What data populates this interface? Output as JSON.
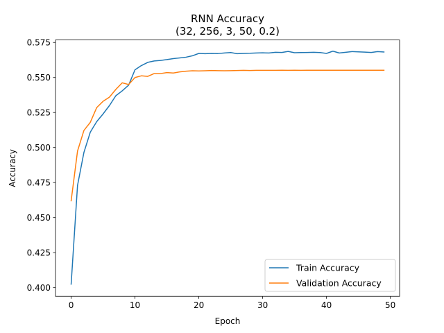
{
  "chart_data": {
    "type": "line",
    "title": "RNN Accuracy",
    "subtitle": "(32, 256, 3, 50, 0.2)",
    "xlabel": "Epoch",
    "ylabel": "Accuracy",
    "xlim": [
      -2.45,
      51.45
    ],
    "ylim": [
      0.3938,
      0.5768
    ],
    "xticks": [
      0,
      10,
      20,
      30,
      40,
      50
    ],
    "yticks": [
      0.4,
      0.425,
      0.45,
      0.475,
      0.5,
      0.525,
      0.55,
      0.575
    ],
    "ytick_labels": [
      "0.400",
      "0.425",
      "0.450",
      "0.475",
      "0.500",
      "0.525",
      "0.550",
      "0.575"
    ],
    "grid": false,
    "legend_position": "lower-right",
    "x": [
      0,
      1,
      2,
      3,
      4,
      5,
      6,
      7,
      8,
      9,
      10,
      11,
      12,
      13,
      14,
      15,
      16,
      17,
      18,
      19,
      20,
      21,
      22,
      23,
      24,
      25,
      26,
      27,
      28,
      29,
      30,
      31,
      32,
      33,
      34,
      35,
      36,
      37,
      38,
      39,
      40,
      41,
      42,
      43,
      44,
      45,
      46,
      47,
      48,
      49
    ],
    "series": [
      {
        "name": "Train Accuracy",
        "color": "#1f77b4",
        "values": [
          0.4025,
          0.473,
          0.4965,
          0.511,
          0.5185,
          0.524,
          0.53,
          0.537,
          0.5405,
          0.5445,
          0.5555,
          0.5585,
          0.5608,
          0.5618,
          0.5622,
          0.5628,
          0.5635,
          0.564,
          0.5645,
          0.5655,
          0.5672,
          0.567,
          0.5672,
          0.5671,
          0.5675,
          0.5678,
          0.567,
          0.5672,
          0.5673,
          0.5675,
          0.5676,
          0.5675,
          0.568,
          0.5679,
          0.5686,
          0.5677,
          0.5678,
          0.5679,
          0.568,
          0.5678,
          0.5672,
          0.5688,
          0.5675,
          0.568,
          0.5685,
          0.5683,
          0.5681,
          0.5679,
          0.5685,
          0.5682
        ]
      },
      {
        "name": "Validation Accuracy",
        "color": "#ff7f0e",
        "values": [
          0.462,
          0.4975,
          0.5122,
          0.518,
          0.5285,
          0.533,
          0.536,
          0.5415,
          0.5462,
          0.545,
          0.55,
          0.5512,
          0.5508,
          0.5528,
          0.5528,
          0.5535,
          0.5532,
          0.554,
          0.5545,
          0.5548,
          0.5547,
          0.5548,
          0.555,
          0.5549,
          0.5548,
          0.5549,
          0.555,
          0.5551,
          0.555,
          0.5551,
          0.5551,
          0.5551,
          0.5551,
          0.5552,
          0.5551,
          0.5552,
          0.5551,
          0.5552,
          0.5552,
          0.5552,
          0.5552,
          0.5552,
          0.5552,
          0.5552,
          0.5552,
          0.5552,
          0.5552,
          0.5552,
          0.5552,
          0.5552
        ]
      }
    ]
  }
}
